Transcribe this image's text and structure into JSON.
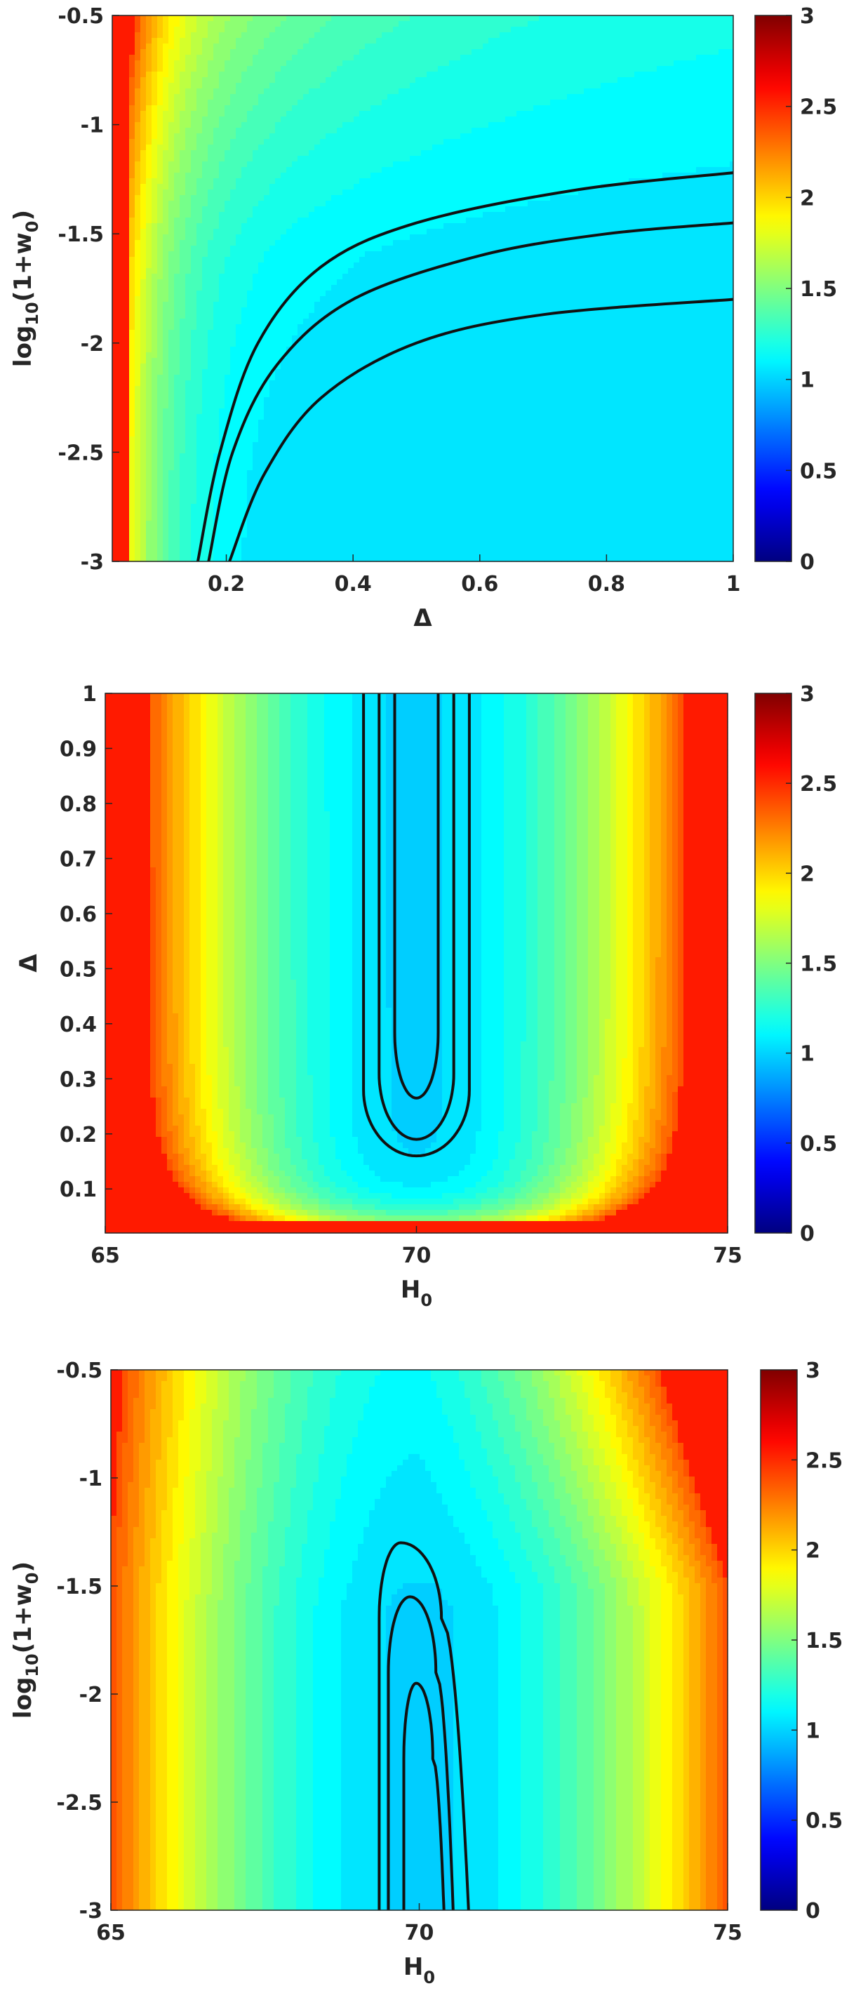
{
  "colorbar": {
    "range": [
      0,
      3
    ],
    "ticks": [
      "0",
      "0.5",
      "1",
      "1.5",
      "2",
      "2.5",
      "3"
    ],
    "colormap": "jet",
    "colors": [
      "#00008f",
      "#0000ff",
      "#00ffff",
      "#ffff00",
      "#ff0000",
      "#800000"
    ]
  },
  "chart_data": [
    {
      "type": "heatmap",
      "title": "",
      "xlabel": "Δ",
      "ylabel": "log10(1+w0)",
      "ylabel_parts": {
        "main": "log",
        "sub1": "10",
        "mid": "(1+w",
        "sub2": "0",
        "end": ")"
      },
      "xlim": [
        0.02,
        1
      ],
      "ylim": [
        -3,
        -0.5
      ],
      "x_ticks": [
        "0.2",
        "0.4",
        "0.6",
        "0.8",
        "1"
      ],
      "y_ticks": [
        "-3",
        "-2.5",
        "-2",
        "-1.5",
        "-1",
        "-0.5"
      ],
      "value_range": [
        0,
        3
      ],
      "background_value": 1.02,
      "saturated_region": {
        "description": "red band at small Δ",
        "x_max": 0.045,
        "value": 2.7
      },
      "contours": [
        {
          "level": 1,
          "points": [
            [
              0.155,
              -3
            ],
            [
              0.19,
              -2.5
            ],
            [
              0.25,
              -2.0
            ],
            [
              0.35,
              -1.65
            ],
            [
              0.5,
              -1.45
            ],
            [
              0.75,
              -1.3
            ],
            [
              1.0,
              -1.22
            ]
          ]
        },
        {
          "level": 2,
          "points": [
            [
              0.172,
              -3
            ],
            [
              0.21,
              -2.5
            ],
            [
              0.28,
              -2.1
            ],
            [
              0.4,
              -1.8
            ],
            [
              0.6,
              -1.6
            ],
            [
              0.8,
              -1.5
            ],
            [
              1.0,
              -1.45
            ]
          ]
        },
        {
          "level": 3,
          "points": [
            [
              0.205,
              -3
            ],
            [
              0.26,
              -2.6
            ],
            [
              0.35,
              -2.25
            ],
            [
              0.5,
              -2.0
            ],
            [
              0.7,
              -1.87
            ],
            [
              1.0,
              -1.8
            ]
          ]
        }
      ]
    },
    {
      "type": "heatmap",
      "title": "",
      "xlabel": "H0",
      "xlabel_parts": {
        "main": "H",
        "sub": "0"
      },
      "ylabel": "Δ",
      "xlim": [
        65,
        75
      ],
      "ylim": [
        0.02,
        1
      ],
      "x_ticks": [
        "65",
        "70",
        "75"
      ],
      "y_ticks": [
        "0.1",
        "0.2",
        "0.3",
        "0.4",
        "0.5",
        "0.6",
        "0.7",
        "0.8",
        "0.9",
        "1"
      ],
      "value_range": [
        0,
        3
      ],
      "center_h0": 70,
      "saturated_region": {
        "description": "red band at small Δ",
        "y_max": 0.04,
        "value": 2.7
      },
      "contours": [
        {
          "level": 1,
          "center": 70,
          "half_width": 0.85,
          "bottom": 0.16
        },
        {
          "level": 2,
          "center": 70,
          "half_width": 0.6,
          "bottom": 0.19
        },
        {
          "level": 3,
          "center": 70,
          "half_width": 0.35,
          "bottom": 0.265
        }
      ]
    },
    {
      "type": "heatmap",
      "title": "",
      "xlabel": "H0",
      "xlabel_parts": {
        "main": "H",
        "sub": "0"
      },
      "ylabel": "log10(1+w0)",
      "ylabel_parts": {
        "main": "log",
        "sub1": "10",
        "mid": "(1+w",
        "sub2": "0",
        "end": ")"
      },
      "xlim": [
        65,
        75
      ],
      "ylim": [
        -3,
        -0.5
      ],
      "x_ticks": [
        "65",
        "70",
        "75"
      ],
      "y_ticks": [
        "-3",
        "-2.5",
        "-2",
        "-1.5",
        "-1",
        "-0.5"
      ],
      "value_range": [
        0,
        3
      ],
      "center_h0": 70,
      "saturated_region": {
        "description": "red corner at high H0, high w0",
        "value": 2.6
      },
      "contours": [
        {
          "level": 1,
          "left": 69.35,
          "right": 70.8,
          "top": -1.3,
          "peak_x": 69.7
        },
        {
          "level": 2,
          "left": 69.5,
          "right": 70.55,
          "top": -1.55,
          "peak_x": 69.85
        },
        {
          "level": 3,
          "left": 69.75,
          "right": 70.4,
          "top": -1.95,
          "peak_x": 69.95
        }
      ]
    }
  ]
}
